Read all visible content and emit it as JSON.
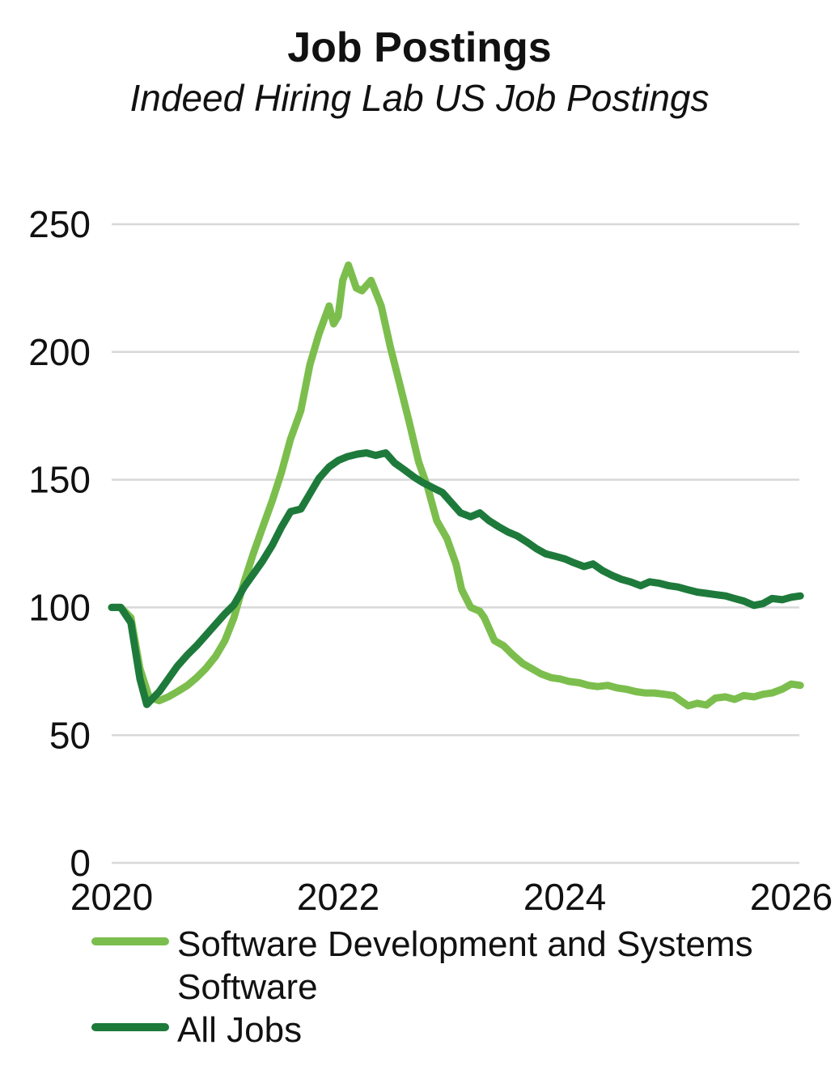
{
  "page": {
    "title": "Job Postings",
    "subtitle": "Indeed Hiring Lab US Job Postings"
  },
  "chart_data": {
    "type": "line",
    "title": "Job Postings",
    "subtitle": "Indeed Hiring Lab US Job Postings",
    "xlabel": "",
    "ylabel": "",
    "xlim": [
      2020,
      2026.1
    ],
    "ylim": [
      0,
      250
    ],
    "x_ticks": [
      2020,
      2022,
      2024,
      2026
    ],
    "y_ticks": [
      0,
      50,
      100,
      150,
      200,
      250
    ],
    "grid": "horizontal",
    "legend_position": "bottom-left",
    "colors": {
      "software": "#7CBE4D",
      "all_jobs": "#1E7A3B",
      "gridline": "#D8D8D8",
      "text": "#111111"
    },
    "series": [
      {
        "name": "Software Development and Systems Software",
        "color": "#7CBE4D",
        "points": [
          [
            2020.0,
            100
          ],
          [
            2020.08,
            100
          ],
          [
            2020.17,
            96
          ],
          [
            2020.25,
            76
          ],
          [
            2020.33,
            65
          ],
          [
            2020.42,
            63.5
          ],
          [
            2020.5,
            65
          ],
          [
            2020.58,
            67
          ],
          [
            2020.67,
            69.5
          ],
          [
            2020.75,
            72.5
          ],
          [
            2020.83,
            76
          ],
          [
            2020.92,
            81
          ],
          [
            2021.0,
            87
          ],
          [
            2021.08,
            96
          ],
          [
            2021.17,
            110
          ],
          [
            2021.25,
            121
          ],
          [
            2021.33,
            131
          ],
          [
            2021.42,
            142
          ],
          [
            2021.5,
            153
          ],
          [
            2021.58,
            166
          ],
          [
            2021.67,
            177
          ],
          [
            2021.75,
            195
          ],
          [
            2021.83,
            207
          ],
          [
            2021.92,
            218
          ],
          [
            2021.96,
            211
          ],
          [
            2022.0,
            214
          ],
          [
            2022.04,
            228
          ],
          [
            2022.09,
            234
          ],
          [
            2022.16,
            225
          ],
          [
            2022.21,
            224
          ],
          [
            2022.29,
            228
          ],
          [
            2022.38,
            218
          ],
          [
            2022.46,
            202
          ],
          [
            2022.54,
            188
          ],
          [
            2022.63,
            172
          ],
          [
            2022.71,
            157
          ],
          [
            2022.79,
            147
          ],
          [
            2022.87,
            134
          ],
          [
            2022.96,
            127
          ],
          [
            2023.04,
            117
          ],
          [
            2023.09,
            107
          ],
          [
            2023.17,
            100
          ],
          [
            2023.25,
            98.5
          ],
          [
            2023.29,
            96
          ],
          [
            2023.38,
            87
          ],
          [
            2023.46,
            85
          ],
          [
            2023.54,
            81.5
          ],
          [
            2023.63,
            78
          ],
          [
            2023.71,
            76
          ],
          [
            2023.79,
            74
          ],
          [
            2023.88,
            72.5
          ],
          [
            2023.96,
            72
          ],
          [
            2024.04,
            71
          ],
          [
            2024.13,
            70.5
          ],
          [
            2024.21,
            69.5
          ],
          [
            2024.29,
            69
          ],
          [
            2024.38,
            69.5
          ],
          [
            2024.46,
            68.5
          ],
          [
            2024.54,
            68
          ],
          [
            2024.63,
            67
          ],
          [
            2024.71,
            66.5
          ],
          [
            2024.79,
            66.5
          ],
          [
            2024.88,
            66
          ],
          [
            2024.96,
            65.5
          ],
          [
            2025.04,
            63
          ],
          [
            2025.09,
            61.5
          ],
          [
            2025.17,
            62.5
          ],
          [
            2025.25,
            61.8
          ],
          [
            2025.33,
            64.5
          ],
          [
            2025.42,
            65
          ],
          [
            2025.5,
            64
          ],
          [
            2025.58,
            65.5
          ],
          [
            2025.67,
            65
          ],
          [
            2025.75,
            66
          ],
          [
            2025.83,
            66.5
          ],
          [
            2025.92,
            68
          ],
          [
            2026.0,
            70
          ],
          [
            2026.08,
            69.5
          ]
        ]
      },
      {
        "name": "All Jobs",
        "color": "#1E7A3B",
        "points": [
          [
            2020.0,
            100
          ],
          [
            2020.08,
            100
          ],
          [
            2020.17,
            94
          ],
          [
            2020.25,
            72
          ],
          [
            2020.31,
            62
          ],
          [
            2020.42,
            67
          ],
          [
            2020.5,
            72
          ],
          [
            2020.58,
            77
          ],
          [
            2020.67,
            81.5
          ],
          [
            2020.75,
            85
          ],
          [
            2020.83,
            89
          ],
          [
            2020.92,
            93.5
          ],
          [
            2021.0,
            97.5
          ],
          [
            2021.08,
            101
          ],
          [
            2021.17,
            108
          ],
          [
            2021.25,
            113
          ],
          [
            2021.33,
            118
          ],
          [
            2021.42,
            124.5
          ],
          [
            2021.5,
            131.5
          ],
          [
            2021.58,
            137.5
          ],
          [
            2021.67,
            138.5
          ],
          [
            2021.75,
            144.5
          ],
          [
            2021.83,
            150.5
          ],
          [
            2021.92,
            155
          ],
          [
            2022.0,
            157.5
          ],
          [
            2022.08,
            159
          ],
          [
            2022.17,
            160
          ],
          [
            2022.25,
            160.5
          ],
          [
            2022.33,
            159.5
          ],
          [
            2022.42,
            160.5
          ],
          [
            2022.5,
            156.5
          ],
          [
            2022.58,
            154
          ],
          [
            2022.67,
            151
          ],
          [
            2022.75,
            148.8
          ],
          [
            2022.83,
            147
          ],
          [
            2022.92,
            145
          ],
          [
            2023.0,
            141
          ],
          [
            2023.08,
            137
          ],
          [
            2023.17,
            135.5
          ],
          [
            2023.25,
            137
          ],
          [
            2023.33,
            134
          ],
          [
            2023.42,
            131.5
          ],
          [
            2023.5,
            129.5
          ],
          [
            2023.58,
            128
          ],
          [
            2023.67,
            125.5
          ],
          [
            2023.75,
            123
          ],
          [
            2023.83,
            121
          ],
          [
            2023.92,
            120
          ],
          [
            2024.0,
            119
          ],
          [
            2024.08,
            117.5
          ],
          [
            2024.17,
            116
          ],
          [
            2024.25,
            117
          ],
          [
            2024.33,
            114.5
          ],
          [
            2024.42,
            112.5
          ],
          [
            2024.5,
            111
          ],
          [
            2024.58,
            110
          ],
          [
            2024.67,
            108.5
          ],
          [
            2024.75,
            110
          ],
          [
            2024.83,
            109.5
          ],
          [
            2024.92,
            108.5
          ],
          [
            2025.0,
            108
          ],
          [
            2025.08,
            107
          ],
          [
            2025.17,
            106
          ],
          [
            2025.25,
            105.5
          ],
          [
            2025.33,
            105
          ],
          [
            2025.42,
            104.5
          ],
          [
            2025.5,
            103.5
          ],
          [
            2025.58,
            102.5
          ],
          [
            2025.67,
            100.8
          ],
          [
            2025.75,
            101.5
          ],
          [
            2025.83,
            103.5
          ],
          [
            2025.92,
            103
          ],
          [
            2026.0,
            104
          ],
          [
            2026.08,
            104.5
          ]
        ]
      }
    ]
  }
}
